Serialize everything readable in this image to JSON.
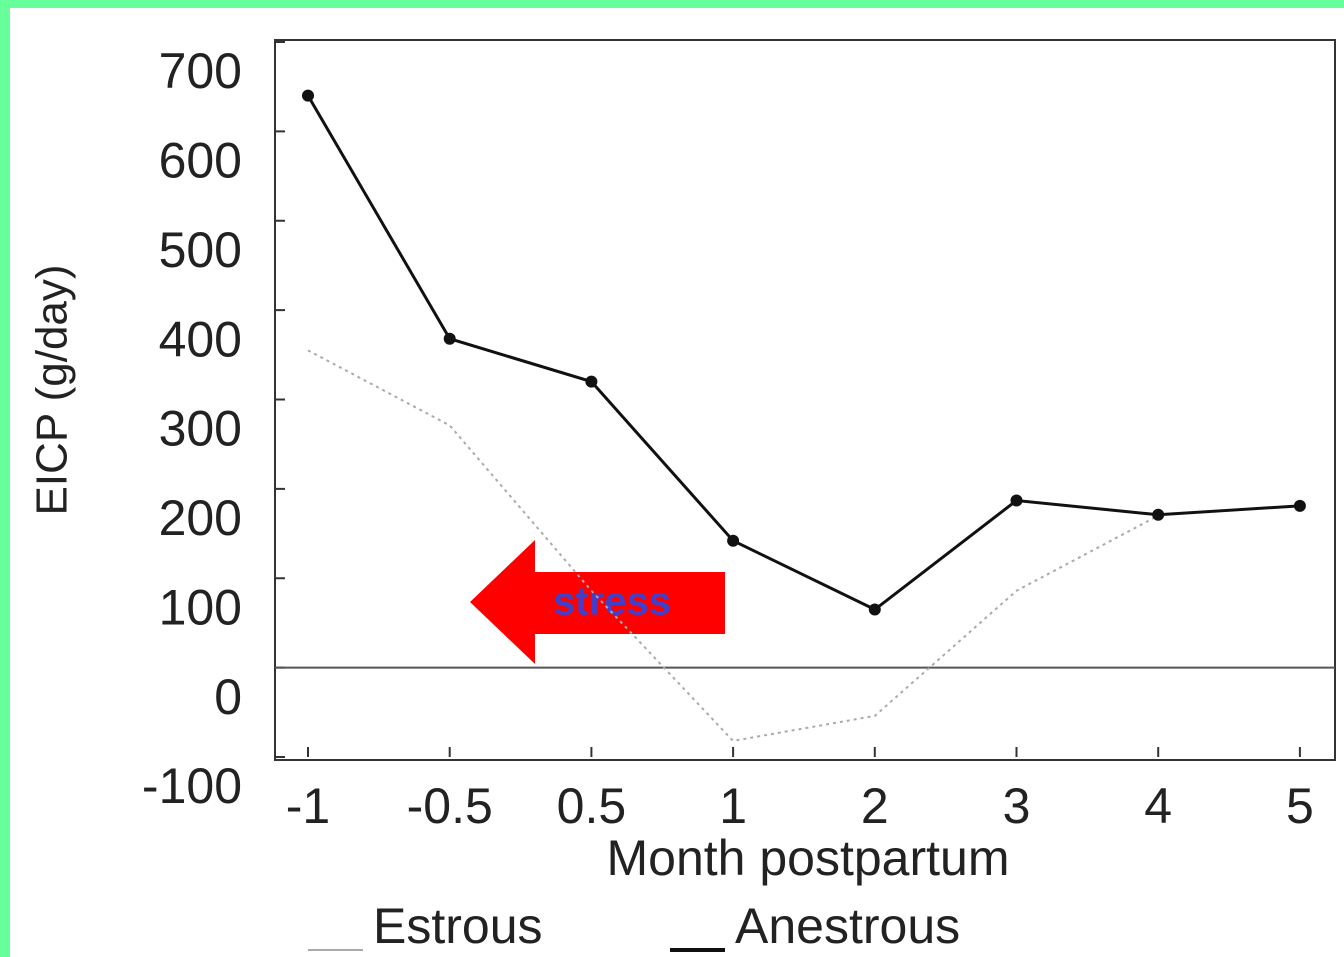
{
  "chart_data": {
    "type": "line",
    "y_label": "EICP (g/day)",
    "x_label": "Month postpartum",
    "categories": [
      "-1",
      "-0.5",
      "0.5",
      "1",
      "2",
      "3",
      "4",
      "5"
    ],
    "series": [
      {
        "name": "Estrous",
        "color": "#aaaaaa",
        "values": [
          355,
          271,
          86,
          -82,
          -54,
          86,
          170,
          null
        ]
      },
      {
        "name": "Anestrous",
        "color": "#111111",
        "values": [
          640,
          368,
          320,
          142,
          65,
          187,
          171,
          181
        ]
      }
    ],
    "ylim": [
      -100,
      700
    ],
    "yticks": [
      700,
      600,
      500,
      400,
      300,
      200,
      100,
      0,
      -100
    ],
    "annotation": "stress"
  }
}
